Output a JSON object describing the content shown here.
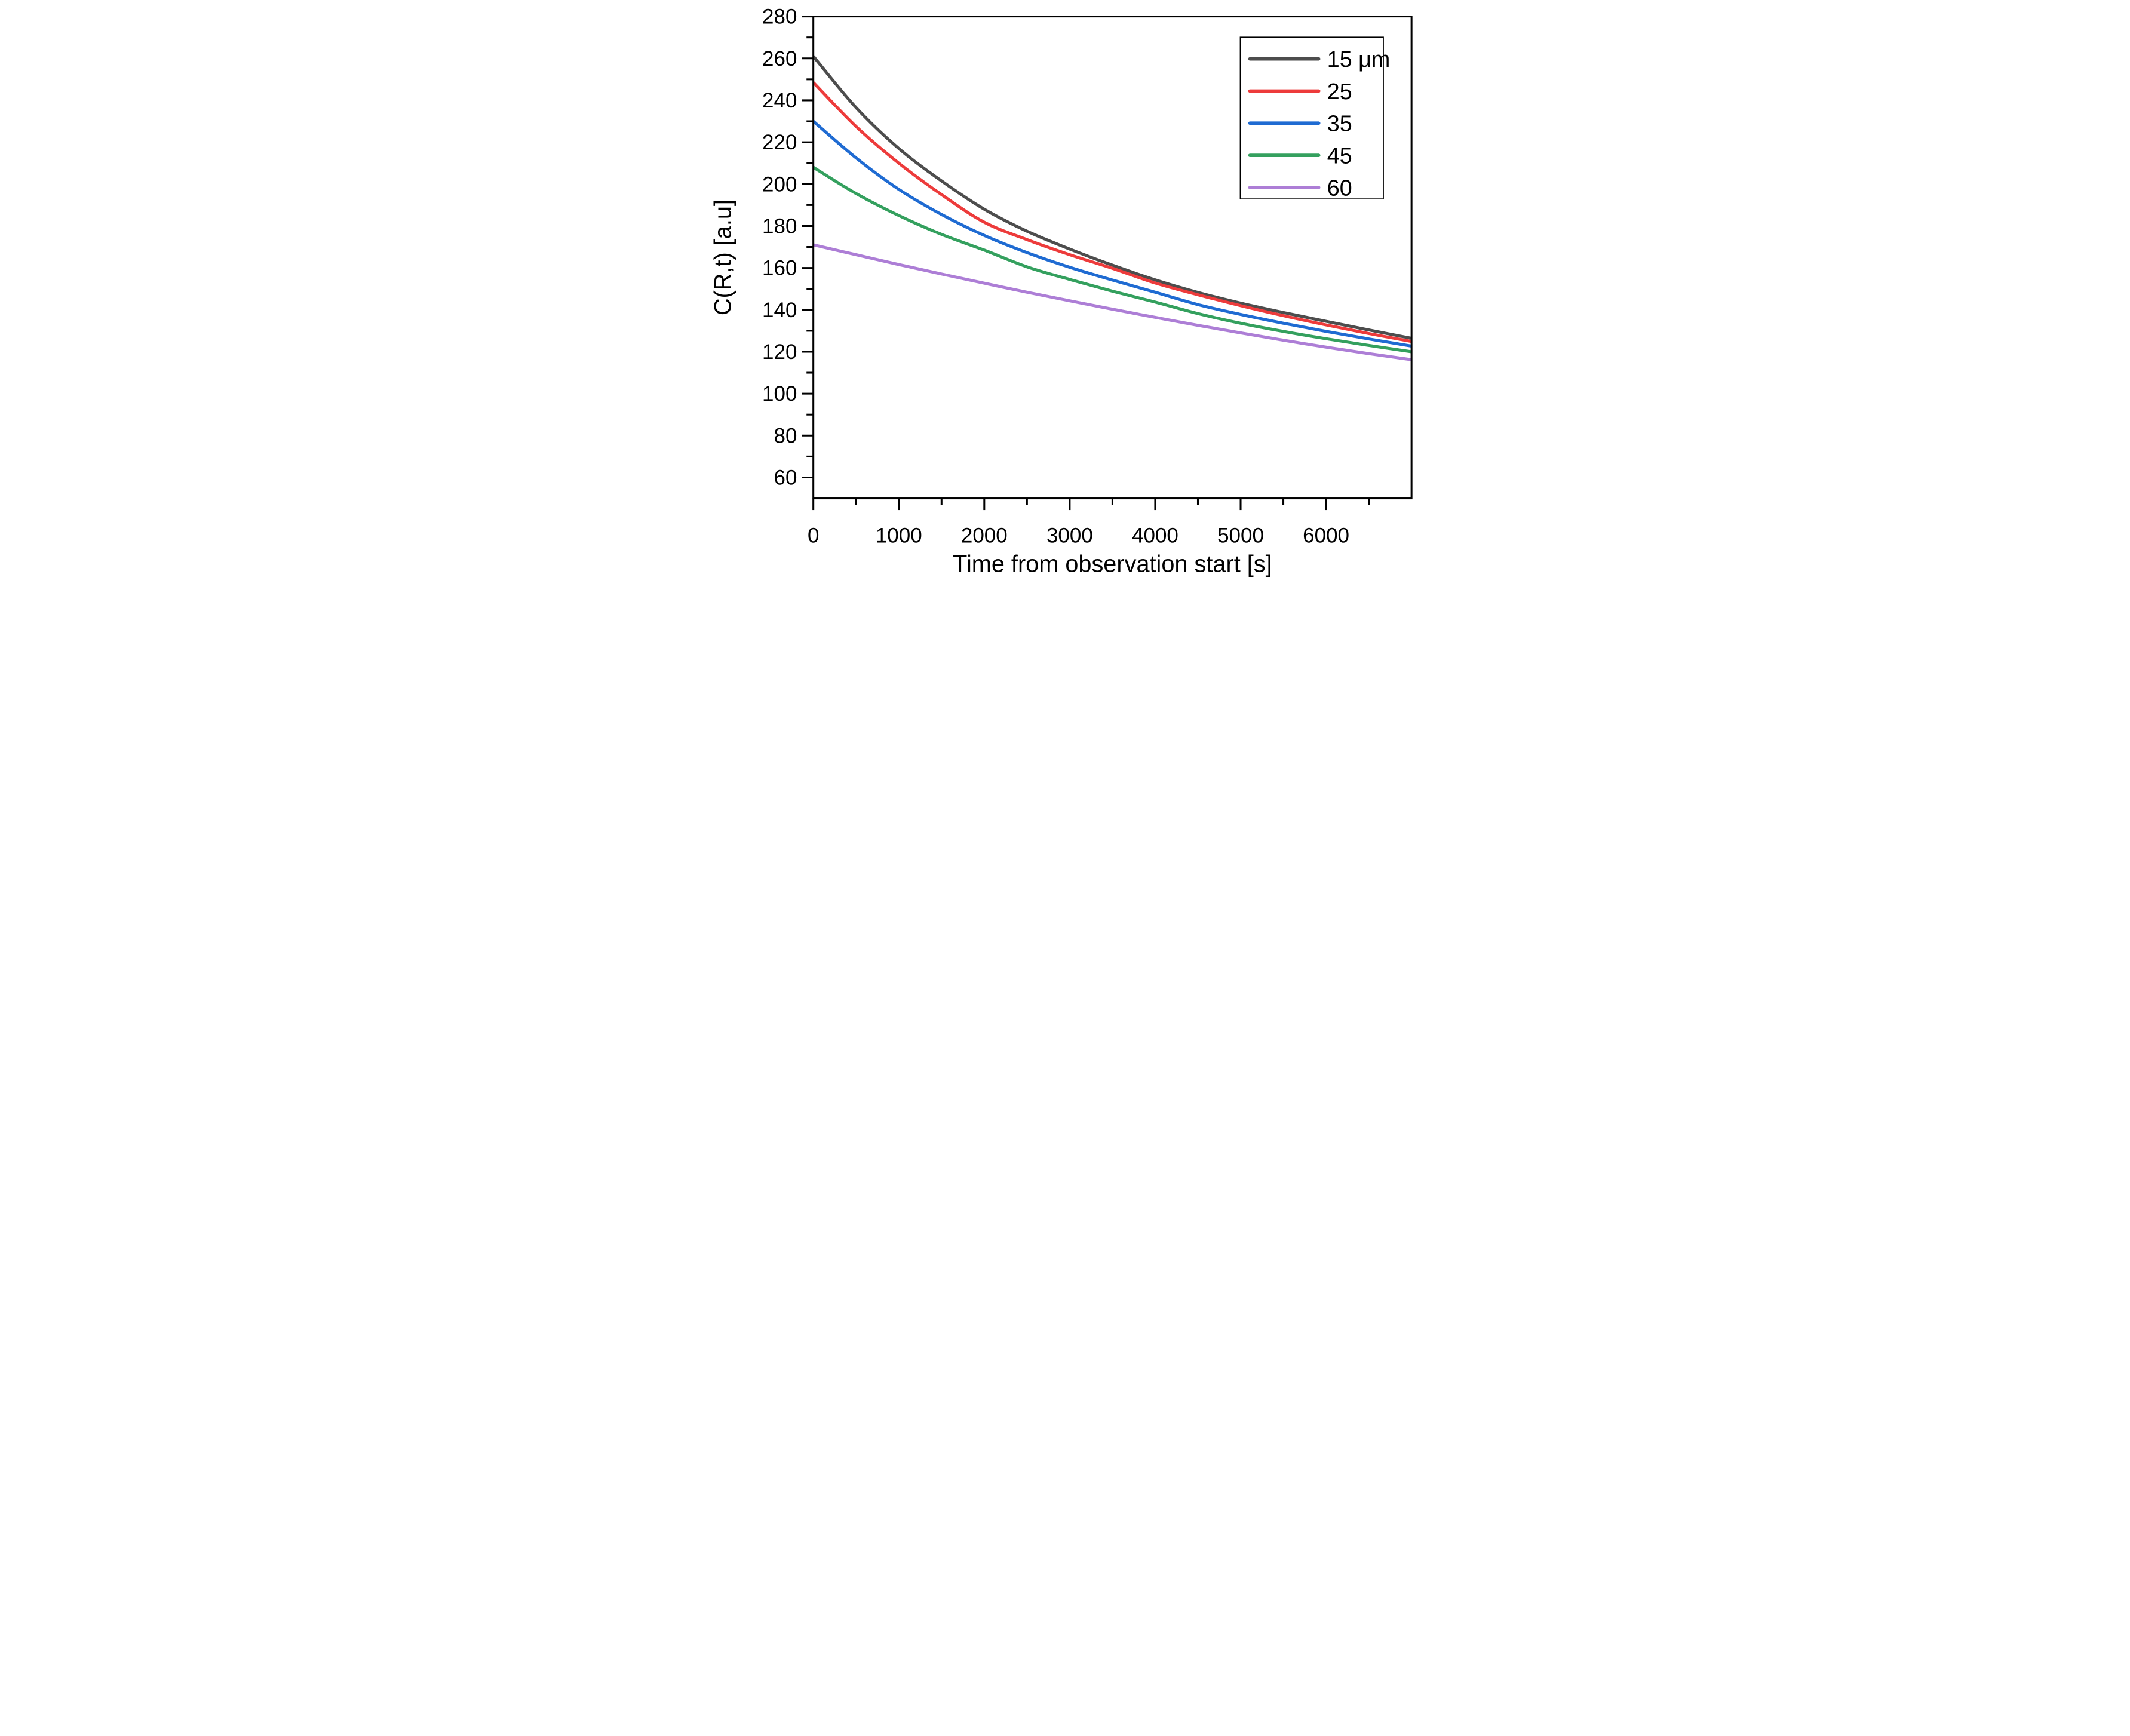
{
  "chart_data": {
    "type": "line",
    "title": "",
    "xlabel": "Time from observation start [s]",
    "ylabel": "C(R,t) [a.u]",
    "xlim": [
      0,
      7000
    ],
    "ylim": [
      50,
      280
    ],
    "x_major_ticks": [
      0,
      1000,
      2000,
      3000,
      4000,
      5000,
      6000
    ],
    "x_minor_ticks": [
      500,
      1500,
      2500,
      3500,
      4500,
      5500,
      6500
    ],
    "y_major_ticks": [
      60,
      80,
      100,
      120,
      140,
      160,
      180,
      200,
      220,
      240,
      260,
      280
    ],
    "y_minor_ticks": [
      70,
      90,
      110,
      130,
      150,
      170,
      190,
      210,
      230,
      250,
      270
    ],
    "grid": false,
    "legend_position": "top-right",
    "axis_color": "#000000",
    "background_color": "#ffffff",
    "x": [
      0,
      500,
      1000,
      1500,
      2000,
      2500,
      3000,
      3500,
      4000,
      4500,
      5000,
      5500,
      6000,
      6500,
      7000
    ],
    "series": [
      {
        "name": "15 μm",
        "color": "#4d4d4d",
        "values": [
          261,
          236.5,
          217,
          201.5,
          188,
          177.5,
          169,
          161.3,
          154.3,
          148.3,
          143.2,
          138.7,
          134.5,
          130.4,
          126.4
        ]
      },
      {
        "name": "25",
        "color": "#ed3b3b",
        "values": [
          248.5,
          227.5,
          210,
          195,
          181.8,
          173.5,
          166.3,
          159.8,
          152.8,
          147.2,
          142.0,
          137.2,
          132.8,
          128.7,
          124.9
        ]
      },
      {
        "name": "35",
        "color": "#1f6bd2",
        "values": [
          230,
          212.5,
          197.5,
          185.5,
          175.5,
          167.3,
          160.3,
          154.2,
          148.4,
          142.5,
          137.8,
          133.6,
          129.7,
          126.1,
          122.7
        ]
      },
      {
        "name": "45",
        "color": "#34a05e",
        "values": [
          208,
          195.5,
          185,
          176,
          168.5,
          160.5,
          154.5,
          148.9,
          143.7,
          138.2,
          133.6,
          129.7,
          126.2,
          123,
          120
        ]
      },
      {
        "name": "60",
        "color": "#ad7ed6",
        "values": [
          171,
          166.3,
          161.6,
          157.1,
          152.7,
          148.4,
          144.3,
          140.3,
          136.4,
          132.6,
          129.0,
          125.5,
          122.2,
          119.1,
          116.2
        ]
      }
    ]
  }
}
